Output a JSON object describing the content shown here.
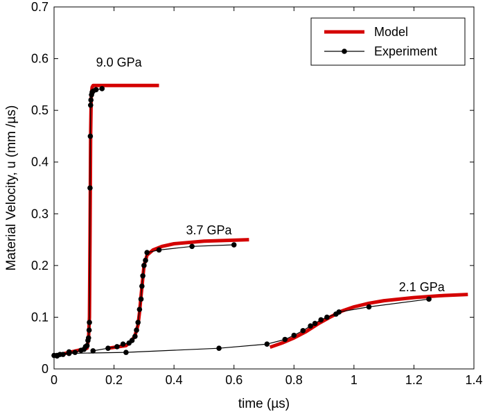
{
  "chart_data": {
    "type": "line",
    "xlabel": "time (µs)",
    "ylabel": "Material Velocity, u (mm /µs)",
    "xlim": [
      0,
      1.4
    ],
    "ylim": [
      0,
      0.7
    ],
    "xticks": [
      0,
      0.2,
      0.4,
      0.6,
      0.8,
      1,
      1.2,
      1.4
    ],
    "xtick_labels": [
      "0",
      "0.2",
      "0.4",
      "0.6",
      "0.8",
      "1",
      "1.2",
      "1.4"
    ],
    "yticks": [
      0,
      0.1,
      0.2,
      0.3,
      0.4,
      0.5,
      0.6,
      0.7
    ],
    "ytick_labels": [
      "0",
      "0.1",
      "0.2",
      "0.3",
      "0.4",
      "0.5",
      "0.6",
      "0.7"
    ],
    "grid": false,
    "legend_position": "top-right",
    "legend": [
      {
        "label": "Model",
        "style": "thick-line",
        "color": "#d40000"
      },
      {
        "label": "Experiment",
        "style": "line-with-dots",
        "color": "#000000"
      }
    ],
    "annotations": [
      {
        "text": "9.0 GPa",
        "x": 0.14,
        "y": 0.585
      },
      {
        "text": "3.7 GPa",
        "x": 0.44,
        "y": 0.26
      },
      {
        "text": "2.1 GPa",
        "x": 1.15,
        "y": 0.15
      }
    ],
    "series": [
      {
        "kind": "model",
        "label": "9.0 GPa",
        "color": "#d40000",
        "x": [
          0.0,
          0.11,
          0.115,
          0.118,
          0.12,
          0.122,
          0.124,
          0.127,
          0.13,
          0.35
        ],
        "y": [
          0.025,
          0.04,
          0.06,
          0.1,
          0.25,
          0.45,
          0.53,
          0.545,
          0.548,
          0.548
        ]
      },
      {
        "kind": "experiment",
        "label": "9.0 GPa",
        "color": "#000000",
        "x": [
          0.0,
          0.01,
          0.02,
          0.03,
          0.05,
          0.07,
          0.09,
          0.1,
          0.105,
          0.11,
          0.113,
          0.115,
          0.117,
          0.118,
          0.12,
          0.121,
          0.122,
          0.123,
          0.125,
          0.127,
          0.13,
          0.14,
          0.16
        ],
        "y": [
          0.026,
          0.025,
          0.028,
          0.028,
          0.033,
          0.032,
          0.036,
          0.038,
          0.043,
          0.045,
          0.055,
          0.06,
          0.075,
          0.09,
          0.35,
          0.45,
          0.51,
          0.52,
          0.53,
          0.535,
          0.537,
          0.54,
          0.542
        ]
      },
      {
        "kind": "model",
        "label": "3.7 GPa",
        "color": "#d40000",
        "x": [
          0.18,
          0.24,
          0.26,
          0.27,
          0.28,
          0.285,
          0.29,
          0.295,
          0.3,
          0.31,
          0.33,
          0.36,
          0.4,
          0.5,
          0.65
        ],
        "y": [
          0.04,
          0.045,
          0.055,
          0.065,
          0.085,
          0.11,
          0.14,
          0.17,
          0.2,
          0.22,
          0.23,
          0.237,
          0.242,
          0.247,
          0.25
        ]
      },
      {
        "kind": "experiment",
        "label": "3.7 GPa",
        "color": "#000000",
        "x": [
          0.13,
          0.18,
          0.21,
          0.23,
          0.25,
          0.26,
          0.27,
          0.275,
          0.28,
          0.285,
          0.29,
          0.293,
          0.296,
          0.3,
          0.305,
          0.31,
          0.35,
          0.46,
          0.6
        ],
        "y": [
          0.035,
          0.04,
          0.043,
          0.048,
          0.05,
          0.055,
          0.063,
          0.075,
          0.09,
          0.115,
          0.135,
          0.16,
          0.18,
          0.2,
          0.21,
          0.225,
          0.23,
          0.237,
          0.24
        ]
      },
      {
        "kind": "model",
        "label": "2.1 GPa",
        "color": "#d40000",
        "x": [
          0.72,
          0.76,
          0.8,
          0.84,
          0.88,
          0.92,
          0.96,
          1.0,
          1.05,
          1.1,
          1.2,
          1.3,
          1.38
        ],
        "y": [
          0.042,
          0.05,
          0.06,
          0.072,
          0.087,
          0.1,
          0.112,
          0.12,
          0.127,
          0.132,
          0.138,
          0.142,
          0.144
        ]
      },
      {
        "kind": "experiment",
        "label": "2.1 GPa",
        "color": "#000000",
        "x": [
          0.01,
          0.05,
          0.24,
          0.55,
          0.71,
          0.77,
          0.8,
          0.83,
          0.855,
          0.87,
          0.89,
          0.91,
          0.94,
          0.95,
          1.05,
          1.25
        ],
        "y": [
          0.026,
          0.03,
          0.032,
          0.04,
          0.048,
          0.057,
          0.065,
          0.074,
          0.083,
          0.088,
          0.095,
          0.1,
          0.106,
          0.11,
          0.12,
          0.135
        ]
      }
    ]
  }
}
